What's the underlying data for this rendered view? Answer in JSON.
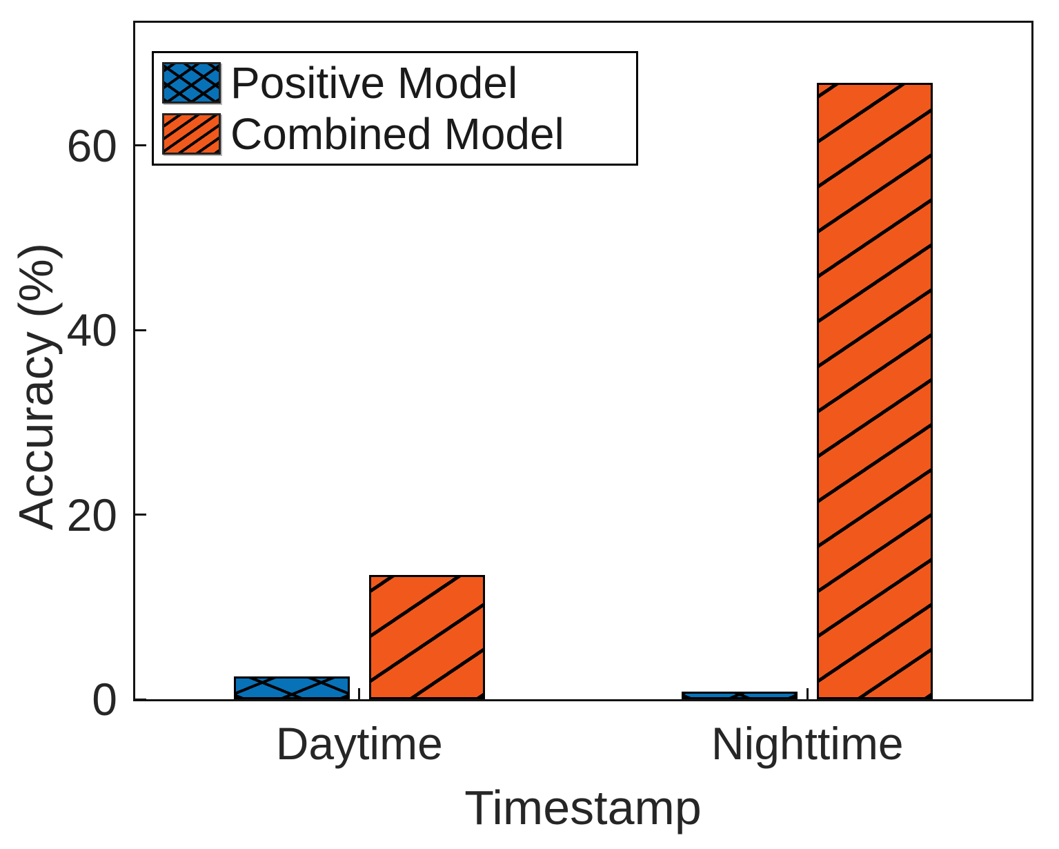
{
  "chart_data": {
    "type": "bar",
    "categories": [
      "Daytime",
      "Nighttime"
    ],
    "series": [
      {
        "name": "Positive Model",
        "values": [
          2.5,
          0.8
        ],
        "color": "#0872B8",
        "hatch": "crosshatch"
      },
      {
        "name": "Combined Model",
        "values": [
          13.5,
          66.8
        ],
        "color": "#F1591C",
        "hatch": "diagonal"
      }
    ],
    "title": "",
    "xlabel": "Timestamp",
    "ylabel": "Accuracy (%)",
    "yticks": [
      0,
      20,
      40,
      60
    ],
    "ylim": [
      0,
      73.3
    ],
    "grid": false,
    "legend_position": "top-left",
    "axis_color": "#131313",
    "hatch_line_color": "#000000"
  }
}
